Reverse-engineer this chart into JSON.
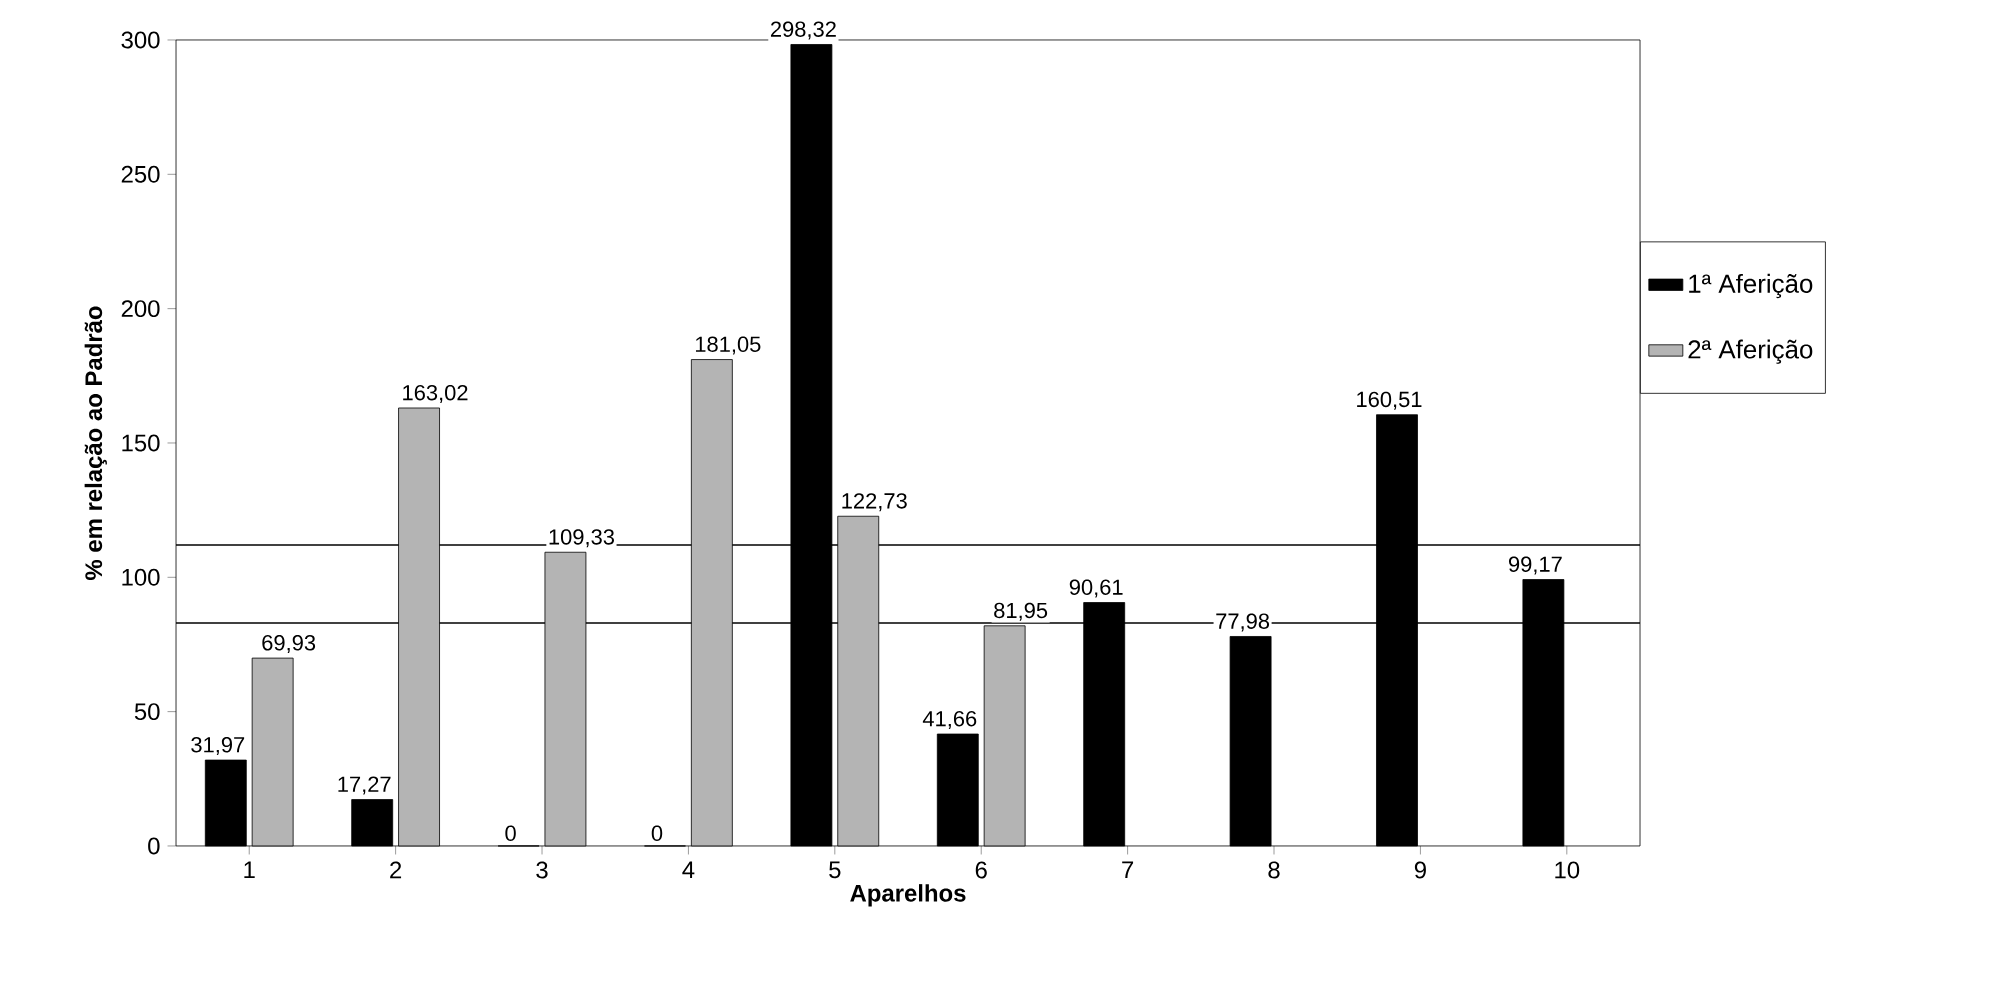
{
  "chart_data": {
    "type": "bar",
    "xlabel": "Aparelhos",
    "ylabel": "% em relação ao Padrão",
    "categories": [
      "1",
      "2",
      "3",
      "4",
      "5",
      "6",
      "7",
      "8",
      "9",
      "10"
    ],
    "series": [
      {
        "name": "1ª Aferição",
        "color": "#000000",
        "values": [
          31.97,
          17.27,
          0,
          0,
          298.32,
          41.66,
          90.61,
          77.98,
          160.51,
          99.17
        ],
        "value_labels": [
          "31,97",
          "17,27",
          "0",
          "0",
          "298,32",
          "41,66",
          "90,61",
          "77,98",
          "160,51",
          "99,17"
        ]
      },
      {
        "name": "2ª Aferição",
        "color": "#b4b4b4",
        "values": [
          69.93,
          163.02,
          109.33,
          181.05,
          122.73,
          81.95,
          null,
          null,
          null,
          null
        ],
        "value_labels": [
          "69,93",
          "163,02",
          "109,33",
          "181,05",
          "122,73",
          "81,95",
          null,
          null,
          null,
          null
        ]
      }
    ],
    "ylim": [
      0,
      300
    ],
    "yticks": [
      0,
      50,
      100,
      150,
      200,
      250,
      300
    ],
    "ref_lines": [
      {
        "axis": "y",
        "value": 112,
        "color": "#000000"
      },
      {
        "axis": "y",
        "value": 83,
        "color": "#000000"
      }
    ],
    "legend": "right"
  }
}
